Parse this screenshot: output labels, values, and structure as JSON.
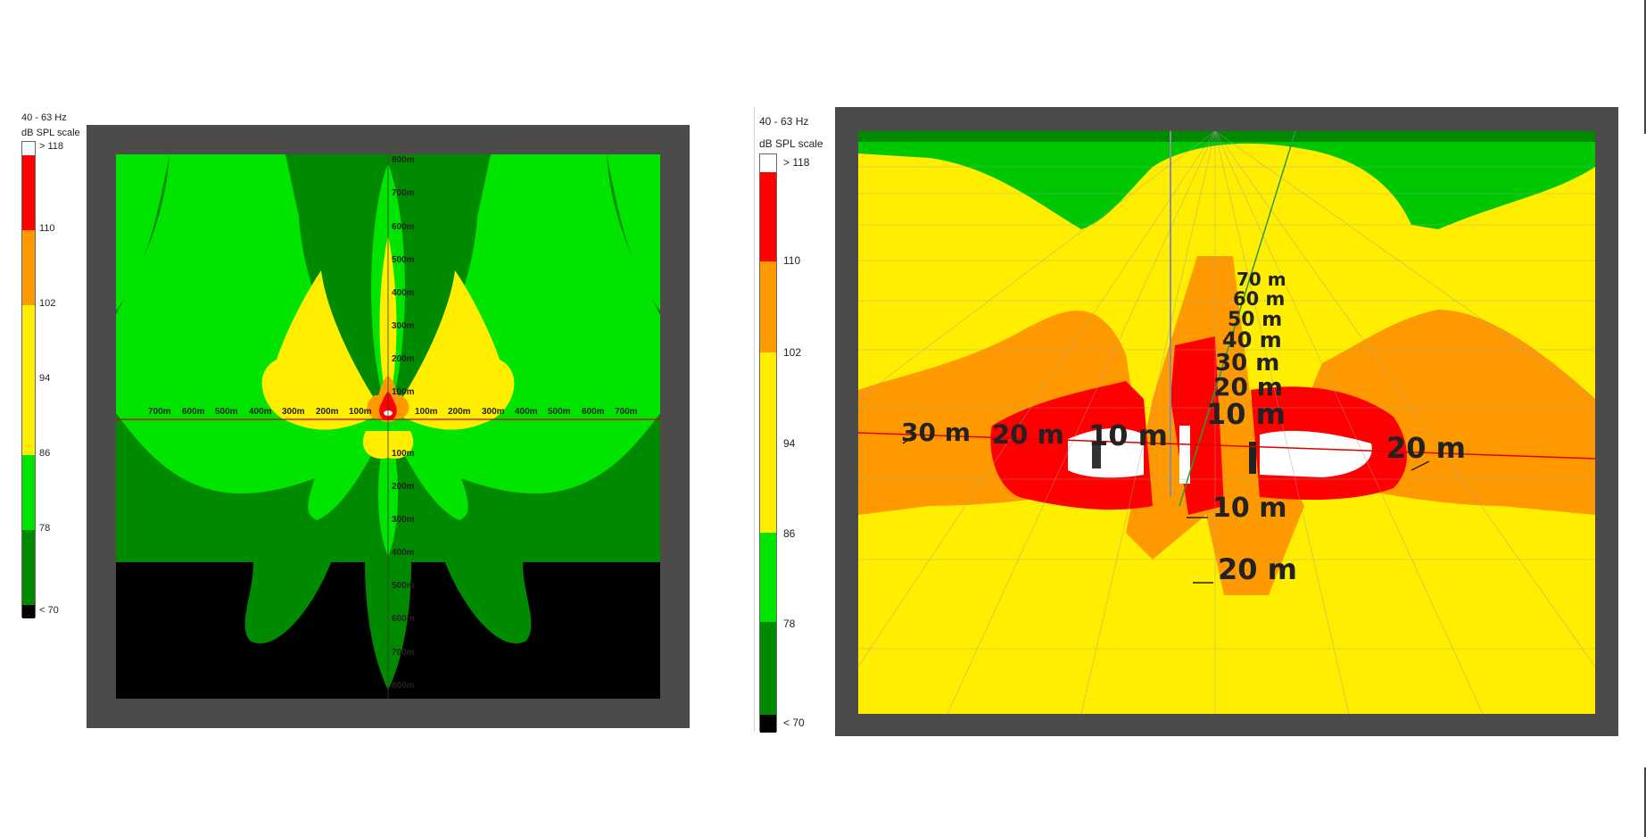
{
  "left_panel": {
    "legend": {
      "freq_label": "40 - 63 Hz",
      "scale_title": "dB SPL scale",
      "levels": [
        "> 118",
        "110",
        "102",
        "94",
        "86",
        "78",
        "< 70"
      ]
    },
    "ticks_horizontal": [
      "700m",
      "600m",
      "500m",
      "400m",
      "300m",
      "200m",
      "100m",
      "100m",
      "200m",
      "300m",
      "400m",
      "500m",
      "600m",
      "700m"
    ],
    "ticks_vertical_up": [
      "800m",
      "700m",
      "600m",
      "500m",
      "400m",
      "300m",
      "200m",
      "100m"
    ],
    "ticks_vertical_down": [
      "100m",
      "200m",
      "300m",
      "400m",
      "500m",
      "600m",
      "700m",
      "800m"
    ]
  },
  "right_panel": {
    "legend": {
      "freq_label": "40 - 63 Hz",
      "scale_title": "dB SPL scale",
      "levels": [
        "> 118",
        "110",
        "102",
        "94",
        "86",
        "78",
        "< 70"
      ]
    },
    "distance_labels": {
      "axis_up": [
        "70 m",
        "60 m",
        "50 m",
        "40 m",
        "30 m",
        "20 m",
        "10 m"
      ],
      "left": [
        "30 m",
        "20 m",
        "10 m"
      ],
      "right": [
        "20 m"
      ],
      "front": [
        "10 m",
        "20 m"
      ]
    }
  },
  "colors": {
    "white_band": "#ffffff",
    "red_band": "#ff0000",
    "orange_band": "#ff9900",
    "yellow_band": "#ffee00",
    "light_green_band": "#00e400",
    "dark_green_band": "#008a00",
    "black_band": "#000000",
    "frame_gray": "#4d4a4a"
  }
}
